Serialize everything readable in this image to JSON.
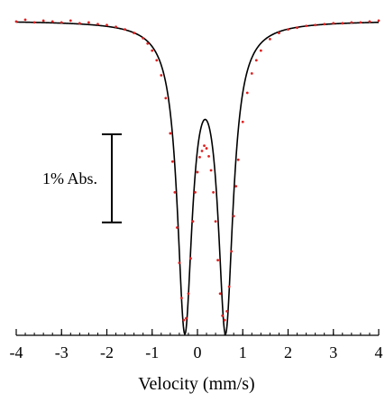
{
  "chart_data": {
    "type": "scatter",
    "title": "",
    "xlabel": "Velocity (mm/s)",
    "ylabel": "",
    "xlim": [
      -4,
      4
    ],
    "ylim": [
      0,
      100
    ],
    "x_ticks": [
      -4,
      -3,
      -2,
      -1,
      0,
      1,
      2,
      3,
      4
    ],
    "x_tick_labels": [
      "-4",
      "-3",
      "-2",
      "-1",
      "0",
      "1",
      "2",
      "3",
      "4"
    ],
    "grid": false,
    "legend": "none",
    "annotations": [
      {
        "text": "1% Abs.",
        "type": "scale-bar",
        "span_percent": 1
      }
    ],
    "fit": {
      "name": "",
      "baseline": 100,
      "color": "#000000",
      "lines": [
        {
          "center": -0.28,
          "half_width": 0.2,
          "depth": 3.4
        },
        {
          "center": 0.62,
          "half_width": 0.2,
          "depth": 3.4
        }
      ]
    },
    "series": [
      {
        "name": "",
        "color": "#e02020",
        "points": [
          [
            -4.0,
            99.99
          ],
          [
            -3.8,
            100.01
          ],
          [
            -3.6,
            99.98
          ],
          [
            -3.4,
            100.0
          ],
          [
            -3.2,
            99.99
          ],
          [
            -3.0,
            99.98
          ],
          [
            -2.8,
            100.0
          ],
          [
            -2.6,
            99.97
          ],
          [
            -2.4,
            99.98
          ],
          [
            -2.2,
            99.96
          ],
          [
            -2.0,
            99.95
          ],
          [
            -1.8,
            99.93
          ],
          [
            -1.6,
            99.9
          ],
          [
            -1.4,
            99.86
          ],
          [
            -1.2,
            99.8
          ],
          [
            -1.1,
            99.74
          ],
          [
            -1.0,
            99.66
          ],
          [
            -0.9,
            99.55
          ],
          [
            -0.8,
            99.38
          ],
          [
            -0.7,
            99.12
          ],
          [
            -0.6,
            98.72
          ],
          [
            -0.55,
            98.4
          ],
          [
            -0.5,
            98.05
          ],
          [
            -0.45,
            97.65
          ],
          [
            -0.4,
            97.25
          ],
          [
            -0.35,
            96.85
          ],
          [
            -0.3,
            96.6
          ],
          [
            -0.25,
            96.62
          ],
          [
            -0.2,
            96.9
          ],
          [
            -0.15,
            97.3
          ],
          [
            -0.1,
            97.72
          ],
          [
            -0.05,
            98.05
          ],
          [
            0.0,
            98.28
          ],
          [
            0.05,
            98.45
          ],
          [
            0.1,
            98.52
          ],
          [
            0.15,
            98.58
          ],
          [
            0.2,
            98.55
          ],
          [
            0.25,
            98.46
          ],
          [
            0.3,
            98.3
          ],
          [
            0.35,
            98.05
          ],
          [
            0.4,
            97.72
          ],
          [
            0.45,
            97.28
          ],
          [
            0.5,
            96.9
          ],
          [
            0.55,
            96.65
          ],
          [
            0.6,
            96.6
          ],
          [
            0.65,
            96.7
          ],
          [
            0.7,
            96.98
          ],
          [
            0.75,
            97.38
          ],
          [
            0.8,
            97.78
          ],
          [
            0.85,
            98.12
          ],
          [
            0.9,
            98.42
          ],
          [
            1.0,
            98.85
          ],
          [
            1.1,
            99.18
          ],
          [
            1.2,
            99.4
          ],
          [
            1.3,
            99.55
          ],
          [
            1.4,
            99.66
          ],
          [
            1.6,
            99.79
          ],
          [
            1.8,
            99.86
          ],
          [
            2.0,
            99.9
          ],
          [
            2.2,
            99.92
          ],
          [
            2.4,
            99.94
          ],
          [
            2.6,
            99.95
          ],
          [
            2.8,
            99.96
          ],
          [
            3.0,
            99.97
          ],
          [
            3.2,
            99.97
          ],
          [
            3.4,
            99.98
          ],
          [
            3.6,
            99.98
          ],
          [
            3.8,
            99.99
          ],
          [
            4.0,
            100.0
          ]
        ]
      }
    ]
  }
}
